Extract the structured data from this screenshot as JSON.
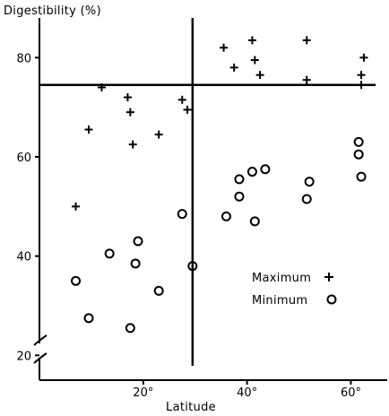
{
  "chart_data": {
    "type": "scatter",
    "title": "",
    "xlabel": "Latitude",
    "ylabel": "Digestibility (%)",
    "xlim": [
      0,
      67
    ],
    "ylim": [
      15,
      88
    ],
    "xticks": [
      {
        "value": 20,
        "label": "20°"
      },
      {
        "value": 40,
        "label": "40°"
      },
      {
        "value": 60,
        "label": "60°"
      }
    ],
    "yticks": [
      {
        "value": 20,
        "label": "20"
      },
      {
        "value": 40,
        "label": "40"
      },
      {
        "value": 60,
        "label": "60"
      },
      {
        "value": 80,
        "label": "80"
      }
    ],
    "y_axis_break": true,
    "grid": false,
    "reference_lines": {
      "vertical_x": 29.5,
      "horizontal_y": 74.5
    },
    "legend_position": "lower-right",
    "series": [
      {
        "name": "Maximum",
        "marker": "plus",
        "points": [
          [
            7,
            50
          ],
          [
            9.5,
            65.5
          ],
          [
            12,
            74
          ],
          [
            17,
            72
          ],
          [
            17.5,
            69
          ],
          [
            18,
            62.5
          ],
          [
            23,
            64.5
          ],
          [
            27.5,
            71.5
          ],
          [
            28.5,
            69.5
          ],
          [
            35.5,
            82
          ],
          [
            37.5,
            78
          ],
          [
            41,
            83.5
          ],
          [
            41.5,
            79.5
          ],
          [
            42.5,
            76.5
          ],
          [
            51.5,
            75.5
          ],
          [
            51.5,
            83.5
          ],
          [
            62,
            74.5
          ],
          [
            62,
            76.5
          ],
          [
            62.5,
            80
          ]
        ]
      },
      {
        "name": "Minimum",
        "marker": "circle",
        "points": [
          [
            7,
            35
          ],
          [
            9.5,
            27.5
          ],
          [
            13.5,
            40.5
          ],
          [
            17.5,
            25.5
          ],
          [
            18.5,
            38.5
          ],
          [
            19,
            43
          ],
          [
            23,
            33
          ],
          [
            27.5,
            48.5
          ],
          [
            29.5,
            38
          ],
          [
            36,
            48
          ],
          [
            38.5,
            52
          ],
          [
            38.5,
            55.5
          ],
          [
            41,
            57
          ],
          [
            41.5,
            47
          ],
          [
            43.5,
            57.5
          ],
          [
            51.5,
            51.5
          ],
          [
            52,
            55
          ],
          [
            61.5,
            63
          ],
          [
            61.5,
            60.5
          ],
          [
            62,
            56
          ]
        ]
      }
    ]
  }
}
